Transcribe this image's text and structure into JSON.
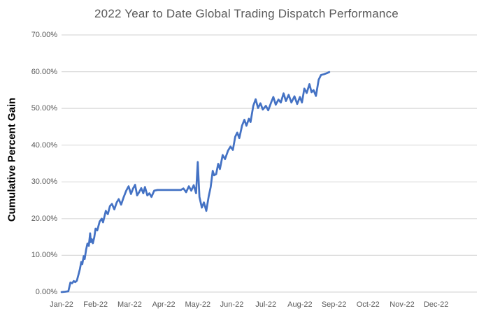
{
  "chart_data": {
    "type": "line",
    "title": "2022 Year to Date Global Trading Dispatch Performance",
    "xlabel": "",
    "ylabel": "Cumulative Percent Gain",
    "x_tick_labels": [
      "Jan-22",
      "Feb-22",
      "Mar-22",
      "Apr-22",
      "May-22",
      "Jun-22",
      "Jul-22",
      "Aug-22",
      "Sep-22",
      "Oct-22",
      "Nov-22",
      "Dec-22"
    ],
    "y_tick_labels": [
      "0.00%",
      "10.00%",
      "20.00%",
      "30.00%",
      "40.00%",
      "50.00%",
      "60.00%",
      "70.00%"
    ],
    "ylim": [
      0,
      70
    ],
    "xlim_months": [
      0,
      12.2
    ],
    "grid": "horizontal",
    "legend": "none",
    "x_units": "months since 2022-01-01",
    "y_units": "percent",
    "series": [
      {
        "name": "Cumulative Percent Gain",
        "color": "#4472C4",
        "points": [
          [
            0.0,
            0.0
          ],
          [
            0.1,
            0.1
          ],
          [
            0.2,
            0.2
          ],
          [
            0.26,
            2.6
          ],
          [
            0.31,
            2.4
          ],
          [
            0.36,
            3.0
          ],
          [
            0.4,
            2.7
          ],
          [
            0.45,
            3.1
          ],
          [
            0.5,
            4.8
          ],
          [
            0.54,
            6.3
          ],
          [
            0.58,
            8.2
          ],
          [
            0.61,
            7.6
          ],
          [
            0.65,
            9.8
          ],
          [
            0.68,
            9.0
          ],
          [
            0.72,
            11.5
          ],
          [
            0.76,
            13.2
          ],
          [
            0.8,
            12.6
          ],
          [
            0.84,
            16.0
          ],
          [
            0.86,
            13.6
          ],
          [
            0.89,
            14.4
          ],
          [
            0.92,
            13.3
          ],
          [
            0.96,
            14.9
          ],
          [
            1.0,
            17.3
          ],
          [
            1.05,
            16.8
          ],
          [
            1.12,
            19.2
          ],
          [
            1.18,
            20.0
          ],
          [
            1.22,
            19.0
          ],
          [
            1.3,
            22.1
          ],
          [
            1.36,
            21.2
          ],
          [
            1.42,
            23.4
          ],
          [
            1.48,
            24.0
          ],
          [
            1.55,
            22.5
          ],
          [
            1.62,
            24.4
          ],
          [
            1.68,
            25.3
          ],
          [
            1.75,
            23.8
          ],
          [
            1.82,
            25.7
          ],
          [
            1.9,
            27.6
          ],
          [
            1.97,
            28.8
          ],
          [
            2.04,
            26.7
          ],
          [
            2.1,
            28.2
          ],
          [
            2.16,
            29.2
          ],
          [
            2.22,
            26.3
          ],
          [
            2.28,
            27.2
          ],
          [
            2.34,
            28.3
          ],
          [
            2.4,
            26.9
          ],
          [
            2.45,
            28.6
          ],
          [
            2.52,
            26.3
          ],
          [
            2.58,
            26.9
          ],
          [
            2.64,
            25.9
          ],
          [
            2.72,
            27.6
          ],
          [
            2.82,
            27.8
          ],
          [
            3.0,
            27.8
          ],
          [
            3.25,
            27.8
          ],
          [
            3.5,
            27.8
          ],
          [
            3.58,
            28.2
          ],
          [
            3.66,
            27.2
          ],
          [
            3.74,
            28.8
          ],
          [
            3.81,
            27.6
          ],
          [
            3.88,
            29.1
          ],
          [
            3.95,
            26.9
          ],
          [
            4.0,
            35.4
          ],
          [
            4.05,
            25.9
          ],
          [
            4.12,
            23.0
          ],
          [
            4.18,
            24.4
          ],
          [
            4.25,
            22.1
          ],
          [
            4.32,
            26.0
          ],
          [
            4.38,
            28.6
          ],
          [
            4.44,
            33.0
          ],
          [
            4.48,
            31.8
          ],
          [
            4.54,
            32.1
          ],
          [
            4.6,
            34.9
          ],
          [
            4.65,
            33.5
          ],
          [
            4.73,
            37.3
          ],
          [
            4.8,
            36.2
          ],
          [
            4.89,
            38.5
          ],
          [
            4.96,
            39.6
          ],
          [
            5.03,
            38.7
          ],
          [
            5.1,
            42.3
          ],
          [
            5.16,
            43.4
          ],
          [
            5.22,
            41.9
          ],
          [
            5.3,
            45.3
          ],
          [
            5.37,
            46.9
          ],
          [
            5.43,
            45.3
          ],
          [
            5.5,
            47.2
          ],
          [
            5.55,
            46.3
          ],
          [
            5.63,
            50.7
          ],
          [
            5.7,
            52.5
          ],
          [
            5.77,
            50.1
          ],
          [
            5.84,
            51.4
          ],
          [
            5.91,
            49.7
          ],
          [
            6.0,
            50.7
          ],
          [
            6.07,
            49.5
          ],
          [
            6.15,
            51.5
          ],
          [
            6.22,
            53.1
          ],
          [
            6.29,
            51.0
          ],
          [
            6.37,
            52.4
          ],
          [
            6.44,
            51.6
          ],
          [
            6.52,
            54.1
          ],
          [
            6.59,
            52.0
          ],
          [
            6.67,
            53.7
          ],
          [
            6.75,
            51.6
          ],
          [
            6.84,
            53.3
          ],
          [
            6.92,
            51.2
          ],
          [
            7.0,
            53.1
          ],
          [
            7.06,
            51.6
          ],
          [
            7.13,
            55.4
          ],
          [
            7.2,
            54.2
          ],
          [
            7.28,
            56.6
          ],
          [
            7.34,
            54.4
          ],
          [
            7.4,
            55.0
          ],
          [
            7.47,
            53.4
          ],
          [
            7.55,
            57.8
          ],
          [
            7.62,
            59.1
          ],
          [
            7.7,
            59.3
          ],
          [
            7.79,
            59.6
          ],
          [
            7.86,
            59.9
          ]
        ]
      }
    ],
    "colors": {
      "line": "#4472C4",
      "gridline": "#D9D9D9",
      "tick_text": "#595959",
      "title_text": "#595959",
      "axis_title_text": "#000000",
      "background": "#FFFFFF"
    }
  }
}
